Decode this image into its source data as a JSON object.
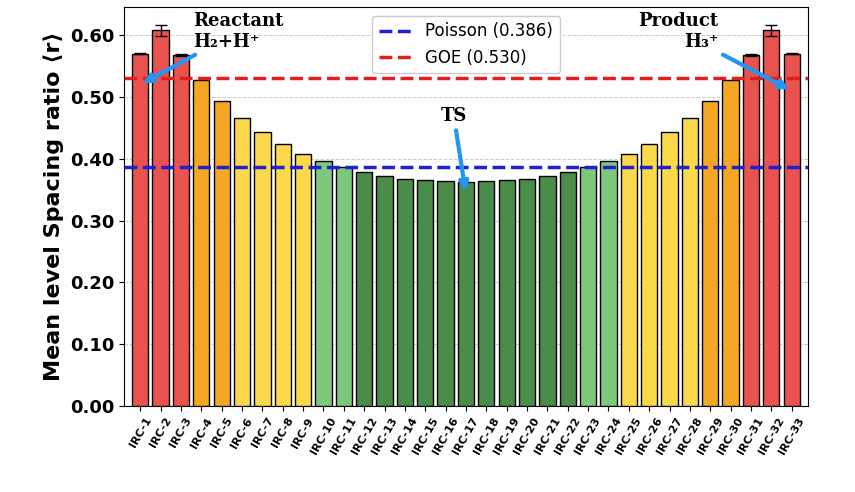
{
  "chart_data": {
    "type": "bar",
    "y_label": "Mean level Spacing ratio ⟨r⟩",
    "categories": [
      "IRC-1",
      "IRC-2",
      "IRC-3",
      "IRC-4",
      "IRC-5",
      "IRC-6",
      "IRC-7",
      "IRC-8",
      "IRC-9",
      "IRC-10",
      "IRC-11",
      "IRC-12",
      "IRC-13",
      "IRC-14",
      "IRC-15",
      "IRC-16",
      "IRC-17",
      "IRC-18",
      "IRC-19",
      "IRC-20",
      "IRC-21",
      "IRC-22",
      "IRC-23",
      "IRC-24",
      "IRC-25",
      "IRC-26",
      "IRC-27",
      "IRC-28",
      "IRC-29",
      "IRC-30",
      "IRC-31",
      "IRC-32",
      "IRC-33"
    ],
    "values": [
      0.57,
      0.608,
      0.568,
      0.528,
      0.494,
      0.466,
      0.443,
      0.424,
      0.408,
      0.396,
      0.386,
      0.378,
      0.372,
      0.368,
      0.365,
      0.364,
      0.363,
      0.364,
      0.365,
      0.368,
      0.372,
      0.378,
      0.386,
      0.396,
      0.408,
      0.424,
      0.443,
      0.466,
      0.494,
      0.528,
      0.568,
      0.608,
      0.57
    ],
    "errors": [
      0.001,
      0.009,
      0.001,
      0,
      0,
      0,
      0,
      0,
      0,
      0,
      0,
      0,
      0,
      0,
      0,
      0,
      0,
      0,
      0,
      0,
      0,
      0,
      0,
      0,
      0,
      0,
      0,
      0,
      0,
      0,
      0.001,
      0.009,
      0.001
    ],
    "colors": [
      "#e8534f",
      "#e8534f",
      "#e8534f",
      "#f5a623",
      "#f5a623",
      "#fcd94a",
      "#fcd94a",
      "#fcd94a",
      "#fcd94a",
      "#7ec87e",
      "#7ec87e",
      "#4a8c4a",
      "#4a8c4a",
      "#4a8c4a",
      "#4a8c4a",
      "#4a8c4a",
      "#4a8c4a",
      "#4a8c4a",
      "#4a8c4a",
      "#4a8c4a",
      "#4a8c4a",
      "#4a8c4a",
      "#7ec87e",
      "#7ec87e",
      "#fcd94a",
      "#fcd94a",
      "#fcd94a",
      "#fcd94a",
      "#f5a623",
      "#f5a623",
      "#e8534f",
      "#e8534f",
      "#e8534f"
    ],
    "reference_lines": [
      {
        "name": "Poisson (0.386)",
        "value": 0.386,
        "color": "#1f1fd6",
        "line_style": "dashed"
      },
      {
        "name": "GOE (0.530)",
        "value": 0.53,
        "color": "#e02020",
        "line_style": "dashed"
      }
    ],
    "annotations": [
      {
        "text": "Reactant\nH₂+H⁺",
        "category": "IRC-1"
      },
      {
        "text": "TS",
        "category": "IRC-17"
      },
      {
        "text": "Product\nH₃⁺",
        "category": "IRC-33"
      }
    ],
    "ylim": [
      0,
      0.645
    ],
    "yticks": [
      {
        "value": 0,
        "label": "0.00"
      },
      {
        "value": 0.1,
        "label": "0.10"
      },
      {
        "value": 0.2,
        "label": "0.20"
      },
      {
        "value": 0.3,
        "label": "0.30"
      },
      {
        "value": 0.4,
        "label": "0.40"
      },
      {
        "value": 0.5,
        "label": "0.50"
      },
      {
        "value": 0.6,
        "label": "0.60"
      }
    ],
    "legend": "upper center",
    "grid": true
  }
}
